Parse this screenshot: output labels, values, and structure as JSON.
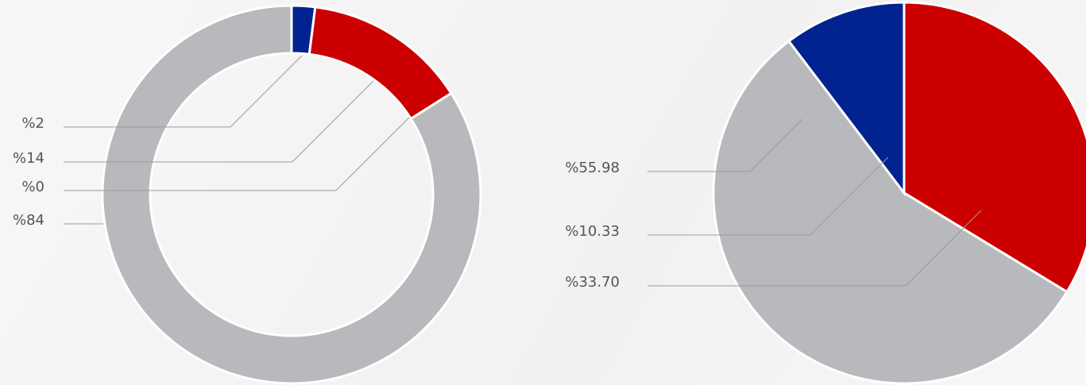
{
  "chart_data": [
    {
      "type": "pie",
      "donut": true,
      "values": [
        2,
        14,
        0,
        84
      ],
      "value_labels": [
        "%2",
        "%14",
        "%0",
        "%84"
      ],
      "colors": [
        "#00238f",
        "#cc0000",
        "#00238f",
        "#b8b9bc"
      ]
    },
    {
      "type": "pie",
      "donut": false,
      "values": [
        33.7,
        55.98,
        10.33
      ],
      "value_labels": [
        "%33.70",
        "%55.98",
        "%10.33"
      ],
      "colors": [
        "#cc0000",
        "#b8b9bc",
        "#00238f"
      ]
    }
  ]
}
